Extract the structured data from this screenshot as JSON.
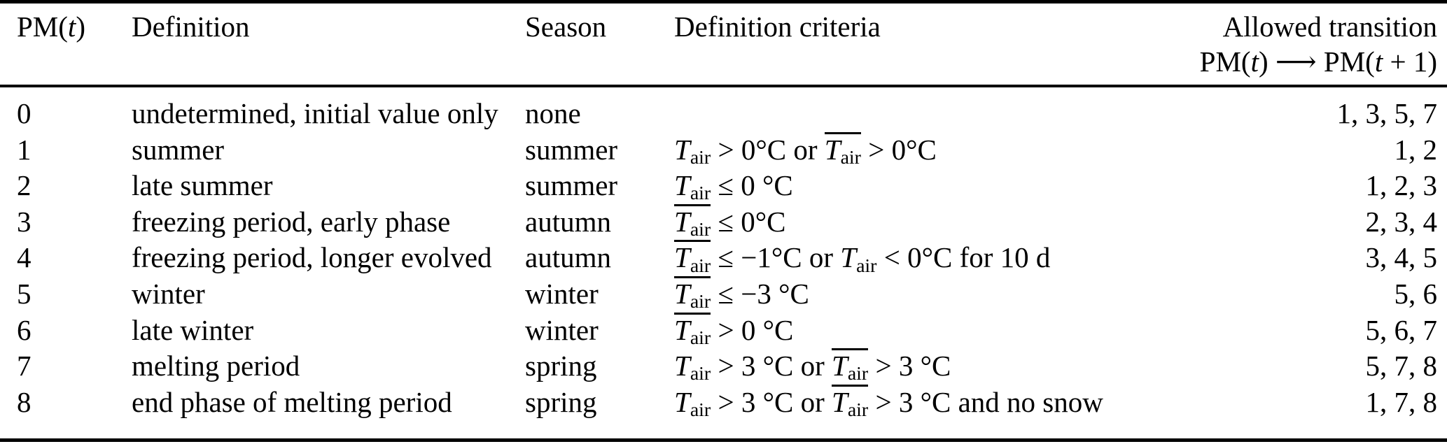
{
  "table": {
    "header": {
      "pm": "PM({{i:t}})",
      "definition": "Definition",
      "season": "Season",
      "criteria": "Definition criteria",
      "transition_line1": "Allowed transition",
      "transition_line2": "PM({{i:t}}) ⟶ PM({{i:t}} + 1)"
    },
    "rows": [
      {
        "pm": "0",
        "definition": "undetermined, initial value only",
        "season": "none",
        "criteria": "",
        "transition": "1, 3, 5, 7"
      },
      {
        "pm": "1",
        "definition": "summer",
        "season": "summer",
        "criteria": "{{T}} > 0°C or {{Tbar}} > 0°C",
        "transition": "1, 2"
      },
      {
        "pm": "2",
        "definition": "late summer",
        "season": "summer",
        "criteria": "{{T}} ≤ 0 °C",
        "transition": "1, 2, 3"
      },
      {
        "pm": "3",
        "definition": "freezing period, early phase",
        "season": "autumn",
        "criteria": "{{Tbar}} ≤ 0°C",
        "transition": "2, 3, 4"
      },
      {
        "pm": "4",
        "definition": "freezing period, longer evolved",
        "season": "autumn",
        "criteria": "{{Tbar}} ≤ −1°C or {{T}} < 0°C for 10 d",
        "transition": "3, 4, 5"
      },
      {
        "pm": "5",
        "definition": "winter",
        "season": "winter",
        "criteria": "{{Tbar}} ≤ −3 °C",
        "transition": "5, 6"
      },
      {
        "pm": "6",
        "definition": "late winter",
        "season": "winter",
        "criteria": "{{Tbar}} > 0 °C",
        "transition": "5, 6, 7"
      },
      {
        "pm": "7",
        "definition": "melting period",
        "season": "spring",
        "criteria": "{{T}} > 3 °C or {{Tbar}} > 3 °C",
        "transition": "5, 7, 8"
      },
      {
        "pm": "8",
        "definition": "end phase of melting period",
        "season": "spring",
        "criteria": "{{T}} > 3 °C or {{Tbar}} > 3 °C and no snow",
        "transition": "1, 7, 8"
      }
    ]
  }
}
